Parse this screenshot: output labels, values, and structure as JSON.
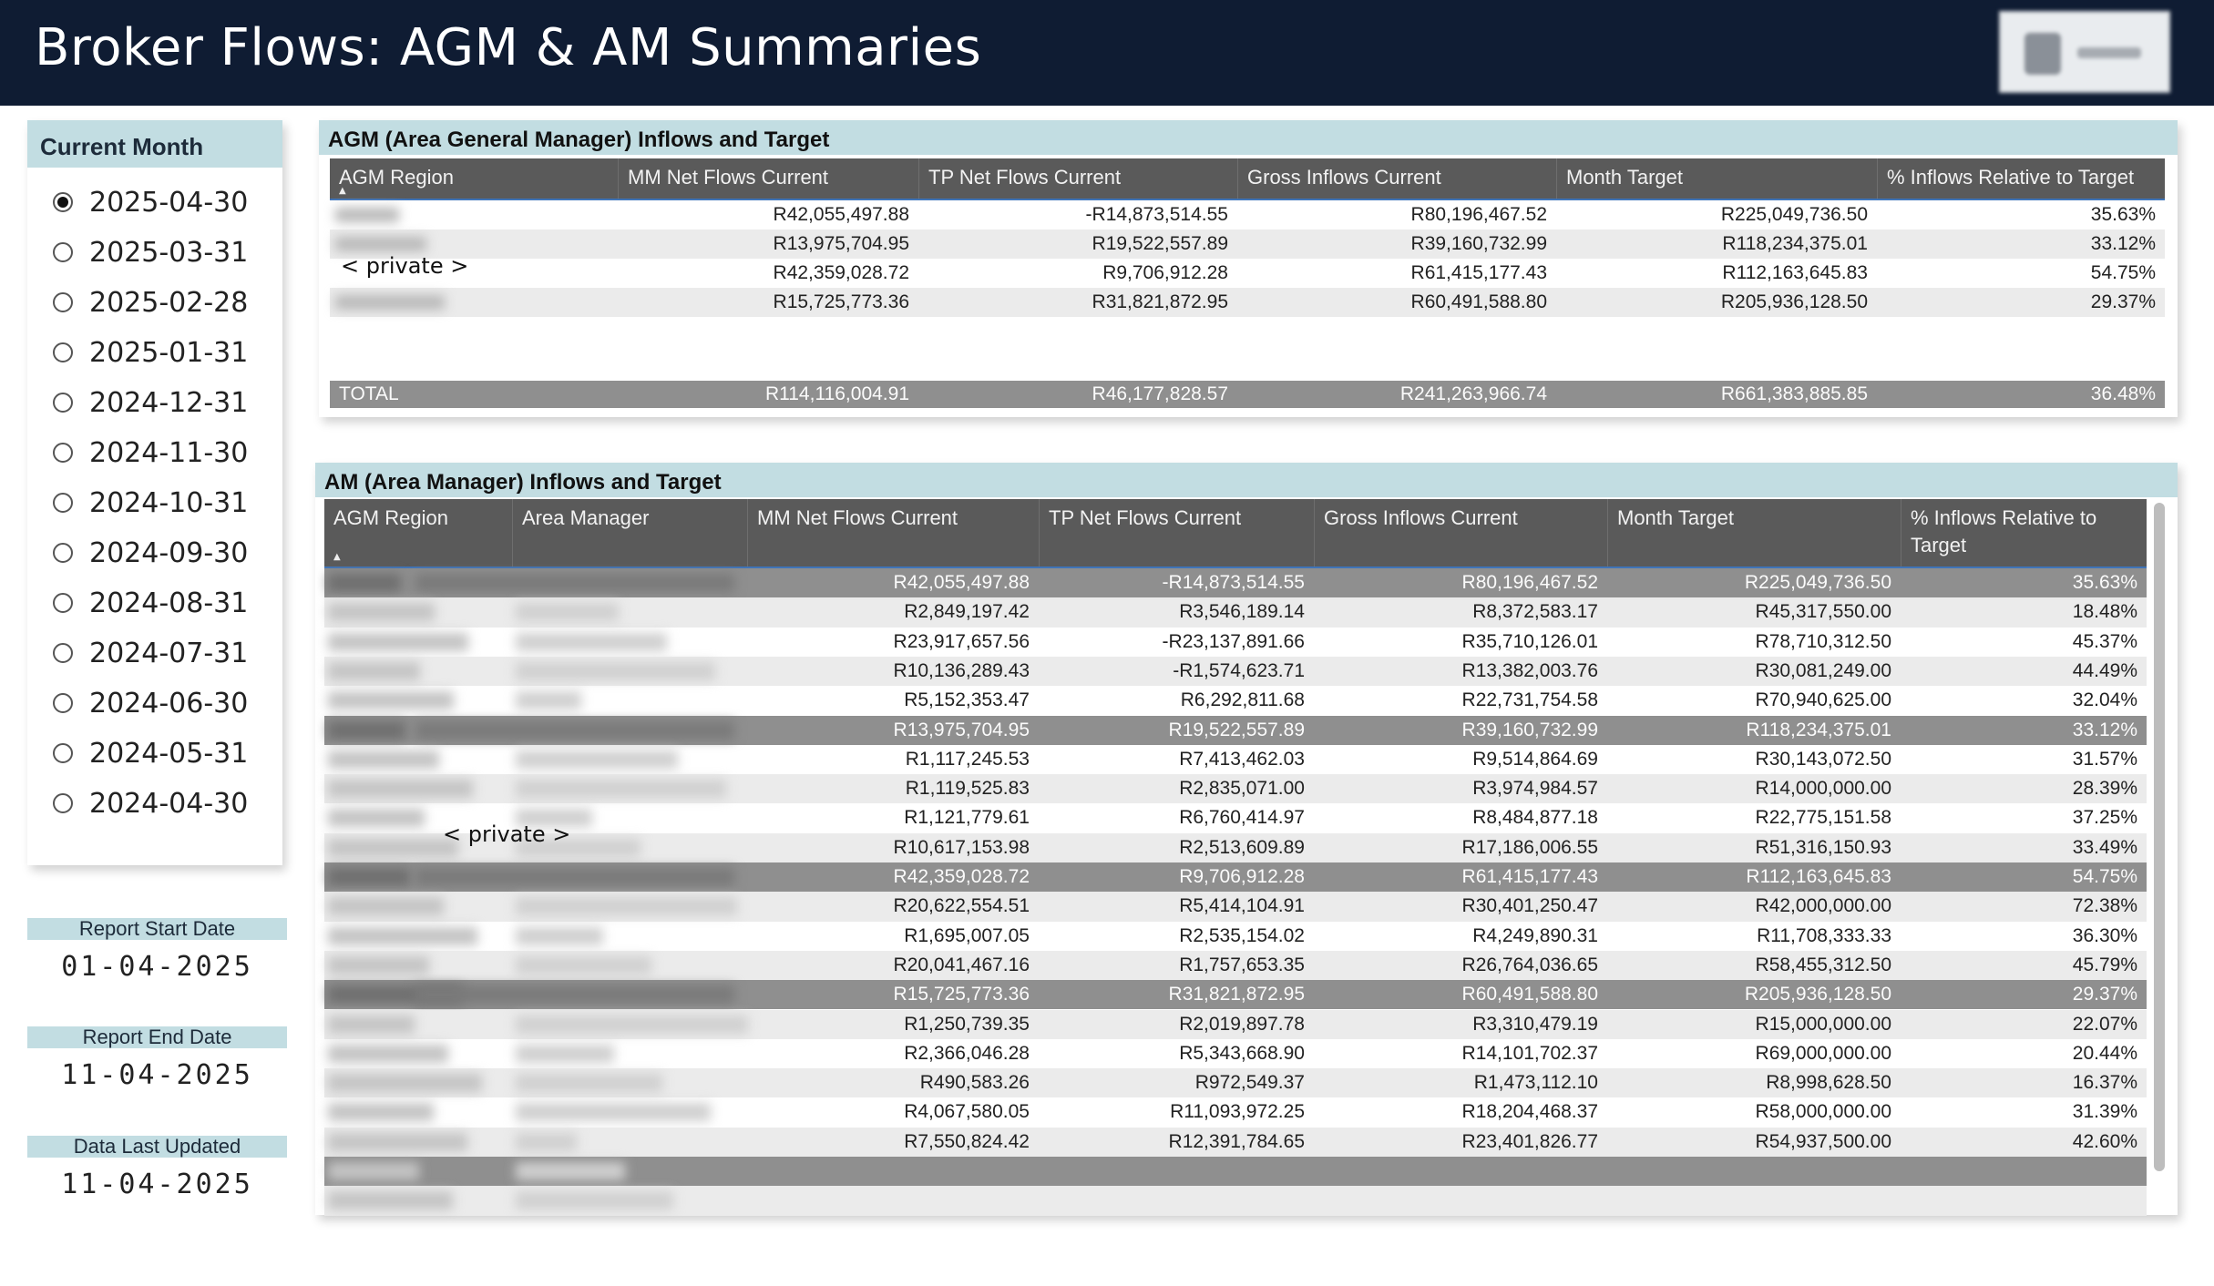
{
  "header": {
    "title": "Broker Flows: AGM & AM Summaries",
    "logo_icon": "company-logo-icon"
  },
  "slicer": {
    "title": "Current Month",
    "selected": "2025-04-30",
    "options": [
      "2025-04-30",
      "2025-03-31",
      "2025-02-28",
      "2025-01-31",
      "2024-12-31",
      "2024-11-30",
      "2024-10-31",
      "2024-09-30",
      "2024-08-31",
      "2024-07-31",
      "2024-06-30",
      "2024-05-31",
      "2024-04-30"
    ]
  },
  "info": {
    "start": {
      "label": "Report Start Date",
      "value": "01-04-2025"
    },
    "end": {
      "label": "Report End Date",
      "value": "11-04-2025"
    },
    "updated": {
      "label": "Data Last Updated",
      "value": "11-04-2025"
    }
  },
  "agm_table": {
    "title": "AGM (Area General Manager) Inflows and Target",
    "columns": [
      "AGM Region",
      "MM Net Flows Current",
      "TP Net Flows Current",
      "Gross Inflows Current",
      "Month Target",
      "% Inflows Relative to Target"
    ],
    "private_label": "< private >",
    "rows": [
      [
        "R42,055,497.88",
        "-R14,873,514.55",
        "R80,196,467.52",
        "R225,049,736.50",
        "35.63%"
      ],
      [
        "R13,975,704.95",
        "R19,522,557.89",
        "R39,160,732.99",
        "R118,234,375.01",
        "33.12%"
      ],
      [
        "R42,359,028.72",
        "R9,706,912.28",
        "R61,415,177.43",
        "R112,163,645.83",
        "54.75%"
      ],
      [
        "R15,725,773.36",
        "R31,821,872.95",
        "R60,491,588.80",
        "R205,936,128.50",
        "29.37%"
      ]
    ],
    "total": [
      "TOTAL",
      "R114,116,004.91",
      "R46,177,828.57",
      "R241,263,966.74",
      "R661,383,885.85",
      "36.48%"
    ]
  },
  "am_table": {
    "title": "AM (Area Manager) Inflows and Target",
    "columns": [
      "AGM Region",
      "Area Manager",
      "MM Net Flows Current",
      "TP Net Flows Current",
      "Gross Inflows Current",
      "Month Target",
      "% Inflows Relative to Target"
    ],
    "private_label": "< private >",
    "rows": [
      {
        "type": "sub",
        "v": [
          "R42,055,497.88",
          "-R14,873,514.55",
          "R80,196,467.52",
          "R225,049,736.50",
          "35.63%"
        ]
      },
      {
        "type": "row",
        "v": [
          "R2,849,197.42",
          "R3,546,189.14",
          "R8,372,583.17",
          "R45,317,550.00",
          "18.48%"
        ]
      },
      {
        "type": "row",
        "v": [
          "R23,917,657.56",
          "-R23,137,891.66",
          "R35,710,126.01",
          "R78,710,312.50",
          "45.37%"
        ]
      },
      {
        "type": "row",
        "v": [
          "R10,136,289.43",
          "-R1,574,623.71",
          "R13,382,003.76",
          "R30,081,249.00",
          "44.49%"
        ]
      },
      {
        "type": "row",
        "v": [
          "R5,152,353.47",
          "R6,292,811.68",
          "R22,731,754.58",
          "R70,940,625.00",
          "32.04%"
        ]
      },
      {
        "type": "sub",
        "v": [
          "R13,975,704.95",
          "R19,522,557.89",
          "R39,160,732.99",
          "R118,234,375.01",
          "33.12%"
        ]
      },
      {
        "type": "row",
        "v": [
          "R1,117,245.53",
          "R7,413,462.03",
          "R9,514,864.69",
          "R30,143,072.50",
          "31.57%"
        ]
      },
      {
        "type": "row",
        "v": [
          "R1,119,525.83",
          "R2,835,071.00",
          "R3,974,984.57",
          "R14,000,000.00",
          "28.39%"
        ]
      },
      {
        "type": "row",
        "v": [
          "R1,121,779.61",
          "R6,760,414.97",
          "R8,484,877.18",
          "R22,775,151.58",
          "37.25%"
        ]
      },
      {
        "type": "row",
        "v": [
          "R10,617,153.98",
          "R2,513,609.89",
          "R17,186,006.55",
          "R51,316,150.93",
          "33.49%"
        ]
      },
      {
        "type": "sub",
        "v": [
          "R42,359,028.72",
          "R9,706,912.28",
          "R61,415,177.43",
          "R112,163,645.83",
          "54.75%"
        ]
      },
      {
        "type": "row",
        "v": [
          "R20,622,554.51",
          "R5,414,104.91",
          "R30,401,250.47",
          "R42,000,000.00",
          "72.38%"
        ]
      },
      {
        "type": "row",
        "v": [
          "R1,695,007.05",
          "R2,535,154.02",
          "R4,249,890.31",
          "R11,708,333.33",
          "36.30%"
        ]
      },
      {
        "type": "row",
        "v": [
          "R20,041,467.16",
          "R1,757,653.35",
          "R26,764,036.65",
          "R58,455,312.50",
          "45.79%"
        ]
      },
      {
        "type": "sub",
        "v": [
          "R15,725,773.36",
          "R31,821,872.95",
          "R60,491,588.80",
          "R205,936,128.50",
          "29.37%"
        ]
      },
      {
        "type": "row",
        "v": [
          "R1,250,739.35",
          "R2,019,897.78",
          "R3,310,479.19",
          "R15,000,000.00",
          "22.07%"
        ]
      },
      {
        "type": "row",
        "v": [
          "R2,366,046.28",
          "R5,343,668.90",
          "R14,101,702.37",
          "R69,000,000.00",
          "20.44%"
        ]
      },
      {
        "type": "row",
        "v": [
          "R490,583.26",
          "R972,549.37",
          "R1,473,112.10",
          "R8,998,628.50",
          "16.37%"
        ]
      },
      {
        "type": "row",
        "v": [
          "R4,067,580.05",
          "R11,093,972.25",
          "R18,204,468.37",
          "R58,000,000.00",
          "31.39%"
        ]
      },
      {
        "type": "row",
        "v": [
          "R7,550,824.42",
          "R12,391,784.65",
          "R23,401,826.77",
          "R54,937,500.00",
          "42.60%"
        ]
      }
    ]
  }
}
